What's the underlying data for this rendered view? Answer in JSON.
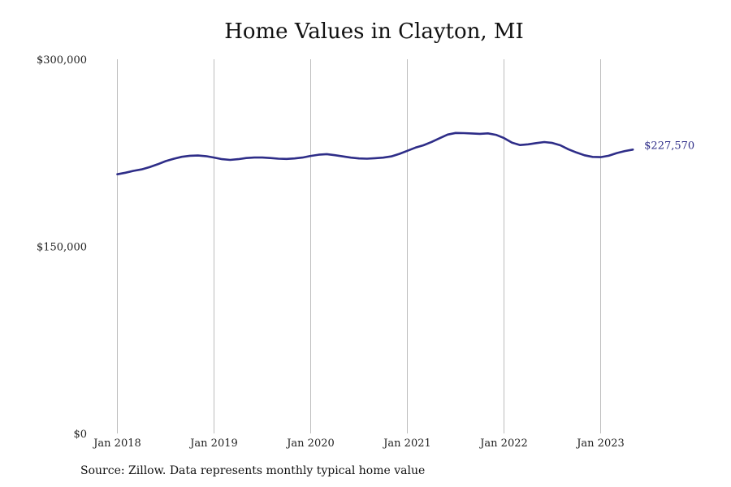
{
  "chart_data": {
    "type": "line",
    "title": "Home Values in Clayton, MI",
    "xlabel": "",
    "ylabel": "",
    "ylim": [
      0,
      300000
    ],
    "xlim": [
      "2018-01",
      "2023-12"
    ],
    "y_ticks": [
      {
        "value": 0,
        "label": "$0"
      },
      {
        "value": 150000,
        "label": "$150,000"
      },
      {
        "value": 300000,
        "label": "$300,000"
      }
    ],
    "x_ticks": [
      {
        "date": "2018-01",
        "label": "Jan 2018"
      },
      {
        "date": "2019-01",
        "label": "Jan 2019"
      },
      {
        "date": "2020-01",
        "label": "Jan 2020"
      },
      {
        "date": "2021-01",
        "label": "Jan 2021"
      },
      {
        "date": "2022-01",
        "label": "Jan 2022"
      },
      {
        "date": "2023-01",
        "label": "Jan 2023"
      }
    ],
    "grid": "vertical",
    "series_color": "#2e2d88",
    "end_label": "$227,570",
    "series": [
      {
        "x": [
          "2018-01",
          "2018-02",
          "2018-03",
          "2018-04",
          "2018-05",
          "2018-06",
          "2018-07",
          "2018-08",
          "2018-09",
          "2018-10",
          "2018-11",
          "2018-12",
          "2019-01",
          "2019-02",
          "2019-03",
          "2019-04",
          "2019-05",
          "2019-06",
          "2019-07",
          "2019-08",
          "2019-09",
          "2019-10",
          "2019-11",
          "2019-12",
          "2020-01",
          "2020-02",
          "2020-03",
          "2020-04",
          "2020-05",
          "2020-06",
          "2020-07",
          "2020-08",
          "2020-09",
          "2020-10",
          "2020-11",
          "2020-12",
          "2021-01",
          "2021-02",
          "2021-03",
          "2021-04",
          "2021-05",
          "2021-06",
          "2021-07",
          "2021-08",
          "2021-09",
          "2021-10",
          "2021-11",
          "2021-12",
          "2022-01",
          "2022-02",
          "2022-03",
          "2022-04",
          "2022-05",
          "2022-06",
          "2022-07",
          "2022-08",
          "2022-09",
          "2022-10",
          "2022-11",
          "2022-12",
          "2023-01",
          "2023-02",
          "2023-03",
          "2023-04",
          "2023-05"
        ],
        "values": [
          207800,
          209000,
          210500,
          211700,
          213500,
          215800,
          218300,
          220200,
          221800,
          222600,
          222800,
          222300,
          221200,
          219900,
          219300,
          219900,
          220800,
          221200,
          221200,
          220800,
          220300,
          220100,
          220500,
          221200,
          222500,
          223500,
          223900,
          223100,
          222100,
          221100,
          220500,
          220300,
          220700,
          221100,
          222100,
          224100,
          226600,
          229100,
          231000,
          233700,
          236700,
          239600,
          240900,
          240800,
          240500,
          240200,
          240600,
          239400,
          236800,
          233100,
          231200,
          231800,
          232800,
          233600,
          232900,
          231000,
          227800,
          225200,
          223000,
          221700,
          221500,
          222600,
          224800,
          226400,
          227570
        ]
      }
    ]
  },
  "footer": {
    "source": "Source: Zillow. Data represents monthly typical home value"
  }
}
